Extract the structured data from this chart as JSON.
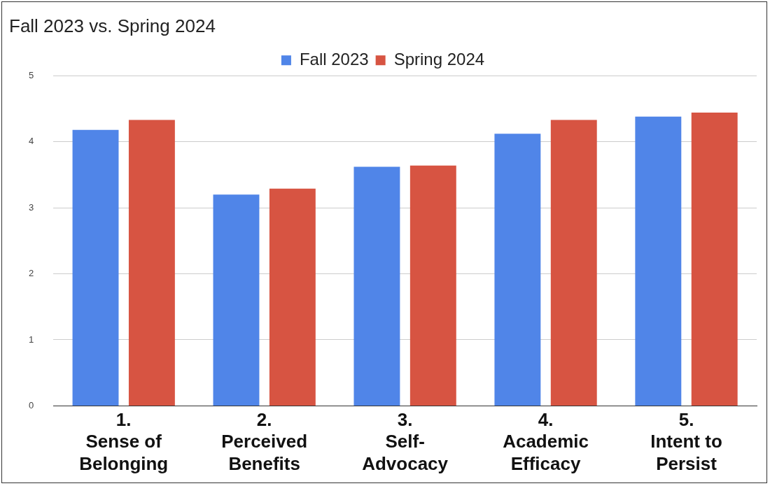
{
  "chart_data": {
    "type": "bar",
    "title": "Fall 2023 vs. Spring 2024",
    "categories": [
      "1. Sense of Belonging",
      "2. Perceived Benefits",
      "3. Self-Advocacy",
      "4. Academic Efficacy",
      "5. Intent to Persist"
    ],
    "series": [
      {
        "name": "Fall 2023",
        "color": "#5085e8",
        "values": [
          4.18,
          3.2,
          3.62,
          4.12,
          4.38
        ]
      },
      {
        "name": "Spring 2024",
        "color": "#d75442",
        "values": [
          4.33,
          3.29,
          3.64,
          4.33,
          4.44
        ]
      }
    ],
    "ylim": [
      0,
      5
    ],
    "yticks": [
      0,
      1,
      2,
      3,
      4,
      5
    ],
    "grid": "y",
    "legend": "top"
  }
}
